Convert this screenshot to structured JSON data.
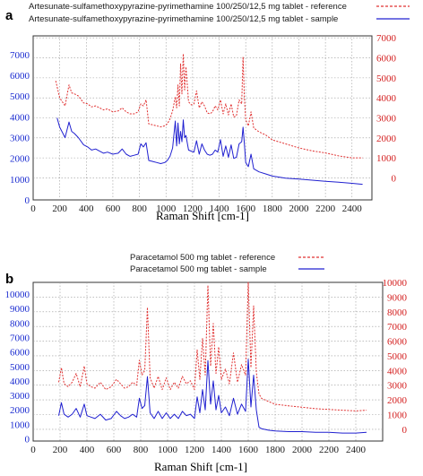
{
  "chart_data": [
    {
      "type": "line",
      "panel_label": "a",
      "xlabel": "Raman Shift [cm-1]",
      "xlim": [
        0,
        2550
      ],
      "x_ticks": [
        "0",
        "200",
        "400",
        "600",
        "800",
        "1000",
        "1200",
        "1400",
        "1600",
        "1800",
        "2000",
        "2200",
        "2400"
      ],
      "y_left_ticks": [
        "0",
        "1000",
        "2000",
        "3000",
        "4000",
        "5000",
        "6000",
        "7000"
      ],
      "y_right_ticks": [
        "0",
        "1000",
        "2000",
        "3000",
        "4000",
        "5000",
        "6000",
        "7000"
      ],
      "ylim_left": [
        0,
        7900
      ],
      "ylim_right": [
        -1100,
        7100
      ],
      "grid": true,
      "legend_position": "top",
      "series": [
        {
          "name": "Artesunate-sulfamethoxypyrazine-pyrimethamine 100/250/12,5 mg tablet - reference",
          "color": "#e03030",
          "dash": "dashed",
          "axis": "right",
          "x": [
            170,
            200,
            240,
            270,
            290,
            310,
            340,
            380,
            410,
            440,
            470,
            500,
            530,
            560,
            600,
            640,
            670,
            700,
            730,
            760,
            790,
            810,
            830,
            850,
            870,
            900,
            930,
            960,
            990,
            1010,
            1030,
            1050,
            1070,
            1080,
            1090,
            1100,
            1110,
            1120,
            1130,
            1140,
            1150,
            1170,
            1190,
            1210,
            1230,
            1250,
            1270,
            1290,
            1310,
            1330,
            1350,
            1370,
            1390,
            1410,
            1430,
            1450,
            1470,
            1490,
            1510,
            1530,
            1550,
            1570,
            1580,
            1590,
            1600,
            1620,
            1640,
            1660,
            1700,
            1750,
            1800,
            1900,
            2000,
            2100,
            2200,
            2300,
            2400,
            2480
          ],
          "y": [
            4850,
            4000,
            3600,
            4650,
            4250,
            4200,
            4100,
            3750,
            3700,
            3550,
            3600,
            3500,
            3400,
            3450,
            3300,
            3350,
            3500,
            3300,
            3200,
            3200,
            3300,
            3700,
            3600,
            3900,
            2700,
            2650,
            2600,
            2550,
            2600,
            2700,
            2950,
            3350,
            4050,
            3500,
            4650,
            3600,
            5700,
            4200,
            6200,
            4400,
            5550,
            3800,
            3650,
            3700,
            4350,
            3500,
            3800,
            3600,
            3250,
            3200,
            3300,
            3600,
            3400,
            3900,
            3200,
            3700,
            3150,
            3700,
            3050,
            3100,
            3900,
            3700,
            6050,
            4000,
            2900,
            2600,
            3300,
            2500,
            2300,
            2150,
            1900,
            1700,
            1500,
            1350,
            1250,
            1100,
            1000,
            1000
          ]
        },
        {
          "name": "Artesunate-sulfamethoxypyrazine-pyrimethamine 100/250/12,5 mg tablet - sample",
          "color": "#2020d0",
          "dash": "solid",
          "axis": "left",
          "x": [
            180,
            200,
            240,
            270,
            290,
            310,
            340,
            380,
            410,
            440,
            470,
            500,
            530,
            560,
            600,
            640,
            670,
            700,
            730,
            760,
            790,
            810,
            830,
            850,
            870,
            900,
            930,
            960,
            990,
            1010,
            1030,
            1050,
            1070,
            1080,
            1090,
            1100,
            1110,
            1120,
            1130,
            1140,
            1150,
            1170,
            1190,
            1210,
            1230,
            1250,
            1270,
            1290,
            1310,
            1330,
            1350,
            1370,
            1390,
            1410,
            1430,
            1450,
            1470,
            1490,
            1510,
            1530,
            1550,
            1570,
            1580,
            1590,
            1600,
            1620,
            1640,
            1660,
            1700,
            1750,
            1800,
            1900,
            2000,
            2100,
            2200,
            2300,
            2400,
            2480
          ],
          "y": [
            3950,
            3500,
            3000,
            3750,
            3300,
            3200,
            3000,
            2650,
            2550,
            2400,
            2450,
            2350,
            2250,
            2300,
            2200,
            2250,
            2450,
            2200,
            2100,
            2150,
            2200,
            2700,
            2550,
            2750,
            1900,
            1850,
            1800,
            1750,
            1800,
            1900,
            2100,
            2500,
            3800,
            2600,
            3700,
            2700,
            3300,
            2800,
            3850,
            3000,
            3100,
            2400,
            2350,
            2300,
            2850,
            2200,
            2700,
            2400,
            2200,
            2150,
            2200,
            2400,
            2300,
            2900,
            2100,
            2600,
            2050,
            2650,
            2000,
            2050,
            2700,
            2800,
            3500,
            2700,
            1800,
            1600,
            2200,
            1500,
            1350,
            1250,
            1150,
            1050,
            1000,
            950,
            900,
            850,
            800,
            750
          ]
        }
      ]
    },
    {
      "type": "line",
      "panel_label": "b",
      "xlabel": "Raman Shift [cm-1]",
      "xlim": [
        0,
        2600
      ],
      "x_ticks": [
        "0",
        "200",
        "400",
        "600",
        "800",
        "1000",
        "1200",
        "1400",
        "1600",
        "1800",
        "2000",
        "2200",
        "2400"
      ],
      "y_left_ticks": [
        "0",
        "1000",
        "2000",
        "3000",
        "4000",
        "5000",
        "6000",
        "7000",
        "8000",
        "9000",
        "10000"
      ],
      "y_right_ticks": [
        "0",
        "1000",
        "2000",
        "3000",
        "4000",
        "5000",
        "6000",
        "7000",
        "8000",
        "9000",
        "10000"
      ],
      "ylim_left": [
        -150,
        10800
      ],
      "ylim_right": [
        -800,
        10000
      ],
      "grid": true,
      "legend_position": "top",
      "series": [
        {
          "name": "Paracetamol 500 mg tablet - reference",
          "color": "#e03030",
          "dash": "dashed",
          "axis": "right",
          "x": [
            190,
            210,
            230,
            260,
            290,
            320,
            350,
            380,
            400,
            430,
            460,
            500,
            540,
            580,
            620,
            650,
            680,
            710,
            740,
            770,
            790,
            810,
            830,
            850,
            870,
            900,
            930,
            960,
            990,
            1020,
            1050,
            1080,
            1110,
            1140,
            1170,
            1200,
            1220,
            1240,
            1260,
            1280,
            1300,
            1320,
            1340,
            1360,
            1380,
            1400,
            1430,
            1460,
            1490,
            1520,
            1550,
            1580,
            1600,
            1620,
            1640,
            1660,
            1680,
            1700,
            1750,
            1800,
            1900,
            2000,
            2100,
            2200,
            2300,
            2400,
            2480
          ],
          "y": [
            3200,
            4200,
            3100,
            2900,
            3200,
            3800,
            2900,
            4300,
            3100,
            2900,
            2800,
            3200,
            2700,
            2900,
            3400,
            3100,
            2800,
            2900,
            3200,
            3000,
            4700,
            3700,
            4000,
            8300,
            3500,
            2800,
            3600,
            2700,
            3500,
            2700,
            3200,
            2800,
            3600,
            3100,
            3300,
            2700,
            5400,
            3400,
            6200,
            3700,
            9800,
            4300,
            7200,
            3800,
            5600,
            3400,
            4100,
            3100,
            5200,
            3200,
            4400,
            3700,
            10000,
            4200,
            8400,
            3900,
            2400,
            2100,
            1900,
            1700,
            1600,
            1500,
            1400,
            1350,
            1300,
            1250,
            1300
          ]
        },
        {
          "name": "Paracetamol 500 mg tablet - sample",
          "color": "#2020d0",
          "dash": "solid",
          "axis": "left",
          "x": [
            190,
            210,
            230,
            260,
            290,
            320,
            350,
            380,
            400,
            430,
            460,
            500,
            540,
            580,
            620,
            650,
            680,
            710,
            740,
            770,
            790,
            810,
            830,
            850,
            870,
            900,
            930,
            960,
            990,
            1020,
            1050,
            1080,
            1110,
            1140,
            1170,
            1200,
            1220,
            1240,
            1260,
            1280,
            1300,
            1320,
            1340,
            1360,
            1380,
            1400,
            1430,
            1460,
            1490,
            1520,
            1550,
            1580,
            1600,
            1620,
            1640,
            1660,
            1680,
            1700,
            1750,
            1800,
            1900,
            2000,
            2100,
            2200,
            2300,
            2400,
            2480
          ],
          "y": [
            1600,
            2500,
            1700,
            1500,
            1700,
            2100,
            1500,
            2400,
            1600,
            1500,
            1400,
            1700,
            1300,
            1400,
            1900,
            1600,
            1400,
            1500,
            1700,
            1500,
            2800,
            2100,
            2300,
            4300,
            1800,
            1400,
            1900,
            1400,
            1800,
            1400,
            1700,
            1400,
            1900,
            1600,
            1700,
            1400,
            2900,
            1800,
            3400,
            2000,
            5400,
            2400,
            4000,
            2000,
            3000,
            1800,
            2200,
            1600,
            2800,
            1700,
            2400,
            1900,
            5500,
            2200,
            4400,
            2000,
            800,
            700,
            600,
            550,
            500,
            500,
            450,
            450,
            400,
            400,
            450
          ]
        }
      ]
    }
  ]
}
